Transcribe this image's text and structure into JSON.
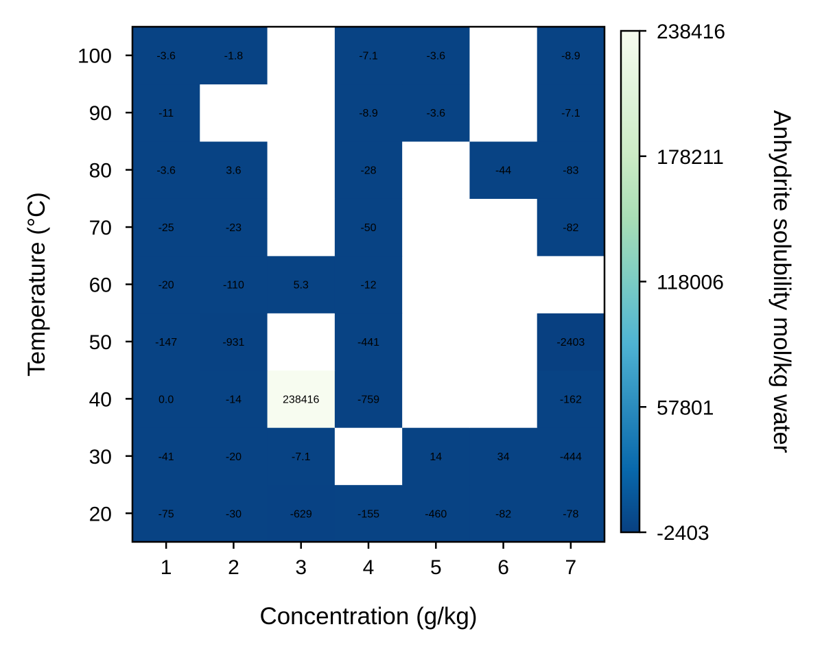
{
  "chart_data": {
    "type": "heatmap",
    "xlabel": "Concentration (g/kg)",
    "ylabel": "Temperature (°C)",
    "x_categories": [
      "1",
      "2",
      "3",
      "4",
      "5",
      "6",
      "7"
    ],
    "y_categories": [
      "20",
      "30",
      "40",
      "50",
      "60",
      "70",
      "80",
      "90",
      "100"
    ],
    "cell_labels": [
      [
        "-75",
        "-30",
        "-629",
        "-155",
        "-460",
        "-82",
        "-78"
      ],
      [
        "-41",
        "-20",
        "-7.1",
        null,
        "14",
        "34",
        "-444"
      ],
      [
        "0.0",
        "-14",
        "238416",
        "-759",
        null,
        null,
        "-162"
      ],
      [
        "-147",
        "-931",
        null,
        "-441",
        null,
        null,
        "-2403"
      ],
      [
        "-20",
        "-110",
        "5.3",
        "-12",
        null,
        null,
        null
      ],
      [
        "-25",
        "-23",
        null,
        "-50",
        null,
        null,
        "-82"
      ],
      [
        "-3.6",
        "3.6",
        null,
        "-28",
        null,
        "-44",
        "-83"
      ],
      [
        "-11",
        null,
        null,
        "-8.9",
        "-3.6",
        null,
        "-7.1"
      ],
      [
        "-3.6",
        "-1.8",
        null,
        "-7.1",
        "-3.6",
        null,
        "-8.9"
      ]
    ],
    "values": [
      [
        -75,
        -30,
        -629,
        -155,
        -460,
        -82,
        -78
      ],
      [
        -41,
        -20,
        -7.1,
        null,
        14,
        34,
        -444
      ],
      [
        0.0,
        -14,
        238416,
        -759,
        null,
        null,
        -162
      ],
      [
        -147,
        -931,
        null,
        -441,
        null,
        null,
        -2403
      ],
      [
        -20,
        -110,
        5.3,
        -12,
        null,
        null,
        null
      ],
      [
        -25,
        -23,
        null,
        -50,
        null,
        null,
        -82
      ],
      [
        -3.6,
        3.6,
        null,
        -28,
        null,
        -44,
        -83
      ],
      [
        -11,
        null,
        null,
        -8.9,
        -3.6,
        null,
        -7.1
      ],
      [
        -3.6,
        -1.8,
        null,
        -7.1,
        -3.6,
        null,
        -8.9
      ]
    ],
    "colorbar": {
      "label": "Anhydrite solubility mol/kg water",
      "range": [
        -2403,
        238416
      ],
      "ticks": [
        "238416",
        "178211",
        "118006",
        "57801",
        "-2403"
      ],
      "tick_values": [
        238416,
        178211,
        118006,
        57801,
        -2403
      ],
      "colormap": "GnBu_r",
      "colors": [
        "#084081",
        "#0868ac",
        "#2b8cbe",
        "#4eb3d3",
        "#7bccc4",
        "#a8ddb5",
        "#ccebc5",
        "#e0f3db",
        "#f7fcf0"
      ]
    },
    "missing_color": "#ffffff",
    "grid": false
  }
}
